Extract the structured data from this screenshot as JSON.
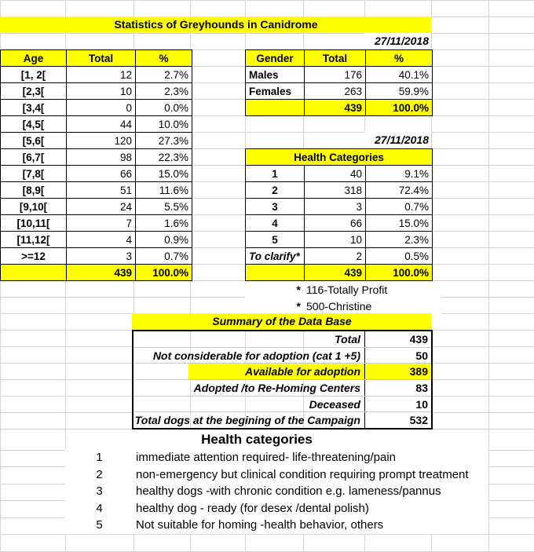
{
  "title": "Statistics of Greyhounds in Canidrome",
  "date_top": "27/11/2018",
  "date_mid": "27/11/2018",
  "age_table": {
    "headers": [
      "Age",
      "Total",
      "%"
    ],
    "rows": [
      [
        "[1, 2[",
        "12",
        "2.7%"
      ],
      [
        "[2,3[",
        "10",
        "2.3%"
      ],
      [
        "[3,4[",
        "0",
        "0.0%"
      ],
      [
        "[4,5[",
        "44",
        "10.0%"
      ],
      [
        "[5,6[",
        "120",
        "27.3%"
      ],
      [
        "[6,7[",
        "98",
        "22.3%"
      ],
      [
        "[7,8[",
        "66",
        "15.0%"
      ],
      [
        "[8,9[",
        "51",
        "11.6%"
      ],
      [
        "[9,10[",
        "24",
        "5.5%"
      ],
      [
        "[10,11[",
        "7",
        "1.6%"
      ],
      [
        "[11,12[",
        "4",
        "0.9%"
      ],
      [
        ">=12",
        "3",
        "0.7%"
      ]
    ],
    "total": [
      "",
      "439",
      "100.0%"
    ]
  },
  "gender_table": {
    "headers": [
      "Gender",
      "Total",
      "%"
    ],
    "rows": [
      [
        "Males",
        "176",
        "40.1%"
      ],
      [
        "Females",
        "263",
        "59.9%"
      ]
    ],
    "total": [
      "",
      "439",
      "100.0%"
    ]
  },
  "health_table": {
    "title": "Health Categories",
    "rows": [
      [
        "1",
        "40",
        "9.1%"
      ],
      [
        "2",
        "318",
        "72.4%"
      ],
      [
        "3",
        "3",
        "0.7%"
      ],
      [
        "4",
        "66",
        "15.0%"
      ],
      [
        "5",
        "10",
        "2.3%"
      ],
      [
        "To clarify*",
        "2",
        "0.5%"
      ]
    ],
    "total": [
      "",
      "439",
      "100.0%"
    ]
  },
  "notes": [
    {
      "marker": "*",
      "text": "116-Totally Profit"
    },
    {
      "marker": "*",
      "text": "500-Christine"
    }
  ],
  "summary": {
    "title": "Summary of the Data Base",
    "rows": [
      {
        "label": "Total",
        "value": "439",
        "highlight": false
      },
      {
        "label": "Not considerable for adoption (cat 1 +5)",
        "value": "50",
        "highlight": false
      },
      {
        "label": "Available for adoption",
        "value": "389",
        "highlight": true
      },
      {
        "label": "Adopted /to Re-Homing Centers",
        "value": "83",
        "highlight": false
      },
      {
        "label": "Deceased",
        "value": "10",
        "highlight": false
      },
      {
        "label": "Total dogs at the begining of the Campaign",
        "value": "532",
        "highlight": false
      }
    ]
  },
  "legend": {
    "title": "Health categories",
    "items": [
      {
        "num": "1",
        "text": "immediate attention required- life-threatening/pain"
      },
      {
        "num": "2",
        "text": "non-emergency but clinical condition requiring prompt treatment"
      },
      {
        "num": "3",
        "text": "healthy dogs -with chronic condition e.g. lameness/pannus"
      },
      {
        "num": "4",
        "text": "healthy dog - ready (for desex /dental polish)"
      },
      {
        "num": "5",
        "text": "Not suitable for homing -health behavior, others"
      }
    ]
  },
  "colors": {
    "highlight_yellow": "#FFFF00",
    "gridline": "#D4D4D4",
    "table_border": "#000000"
  }
}
